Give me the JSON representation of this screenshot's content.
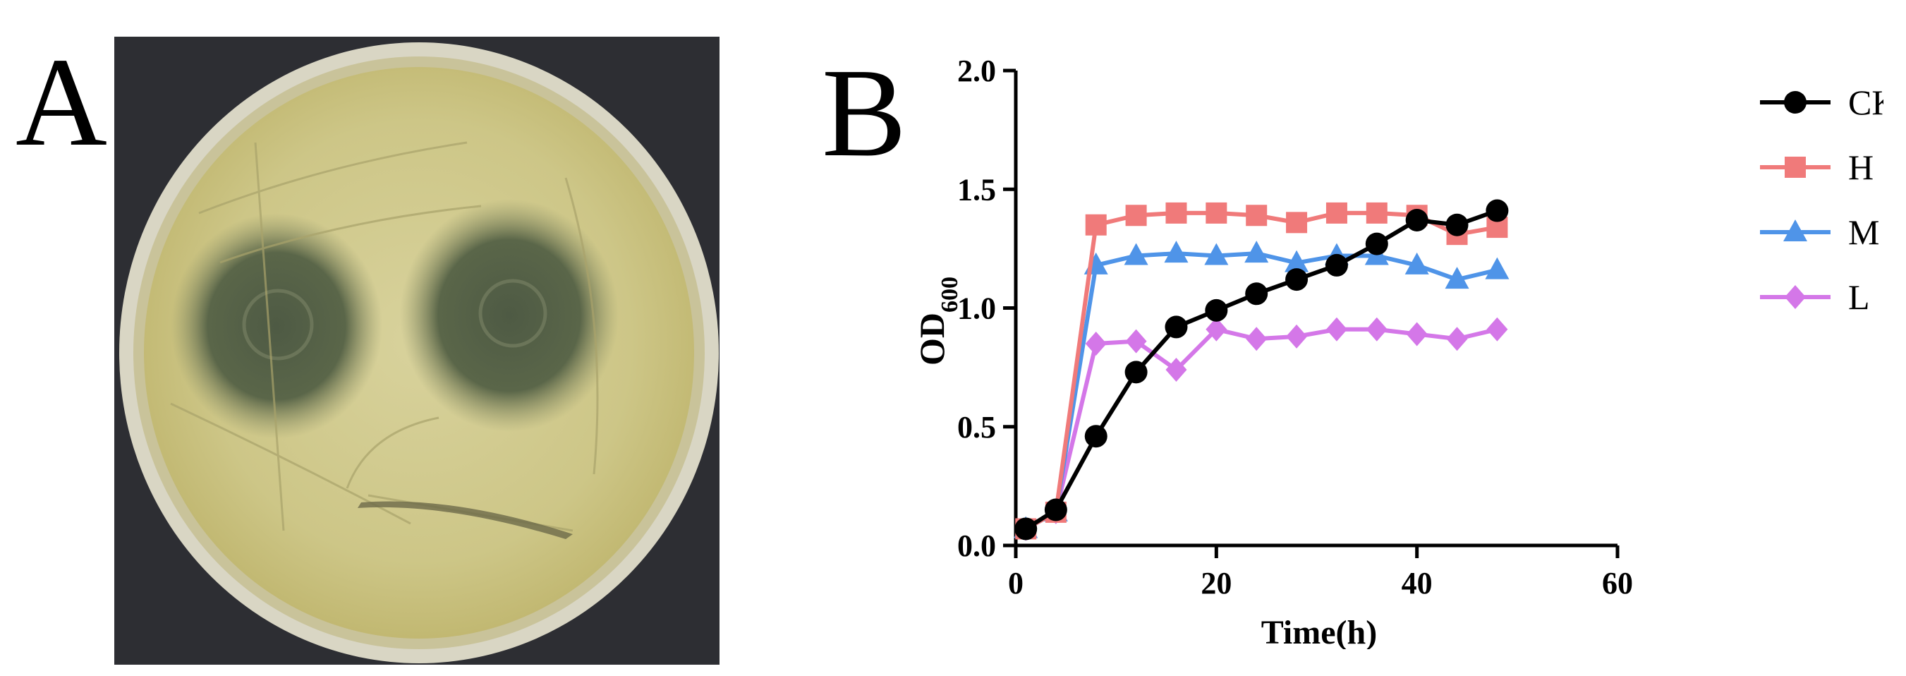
{
  "panels": {
    "a_label": "A",
    "b_label": "B"
  },
  "photo": {
    "subject": "petri-dish",
    "colors": {
      "background": "#2d2e33",
      "rim": "#d9d6c4",
      "agar": "#cfc88a",
      "inhibition_zone": "#55614a"
    }
  },
  "chart_data": {
    "type": "line",
    "xlabel": "Time(h)",
    "ylabel_main": "OD",
    "ylabel_sub": "600",
    "xlim": [
      0,
      60
    ],
    "ylim": [
      0,
      2.0
    ],
    "x_ticks": [
      0,
      20,
      40,
      60
    ],
    "y_ticks": [
      0.0,
      0.5,
      1.0,
      1.5,
      2.0
    ],
    "x_tick_labels": [
      "0",
      "20",
      "40",
      "60"
    ],
    "y_tick_labels": [
      "0.0",
      "0.5",
      "1.0",
      "1.5",
      "2.0"
    ],
    "grid": false,
    "legend_position": "right",
    "x": [
      1,
      4,
      8,
      12,
      16,
      20,
      24,
      28,
      32,
      36,
      40,
      44,
      48
    ],
    "series": [
      {
        "name": "CK",
        "color": "#000000",
        "marker": "circle",
        "values": [
          0.07,
          0.15,
          0.46,
          0.73,
          0.92,
          0.99,
          1.06,
          1.12,
          1.18,
          1.27,
          1.37,
          1.35,
          1.41
        ]
      },
      {
        "name": "H",
        "color": "#f07a7a",
        "marker": "square",
        "values": [
          0.07,
          0.14,
          1.35,
          1.39,
          1.4,
          1.4,
          1.39,
          1.36,
          1.4,
          1.4,
          1.39,
          1.31,
          1.34
        ]
      },
      {
        "name": "M",
        "color": "#4f94e8",
        "marker": "triangle",
        "values": [
          0.07,
          0.14,
          1.18,
          1.22,
          1.23,
          1.22,
          1.23,
          1.19,
          1.22,
          1.22,
          1.18,
          1.12,
          1.16
        ]
      },
      {
        "name": "L",
        "color": "#d477e8",
        "marker": "diamond",
        "values": [
          0.07,
          0.14,
          0.85,
          0.86,
          0.74,
          0.91,
          0.87,
          0.88,
          0.91,
          0.91,
          0.89,
          0.87,
          0.91
        ]
      }
    ]
  }
}
